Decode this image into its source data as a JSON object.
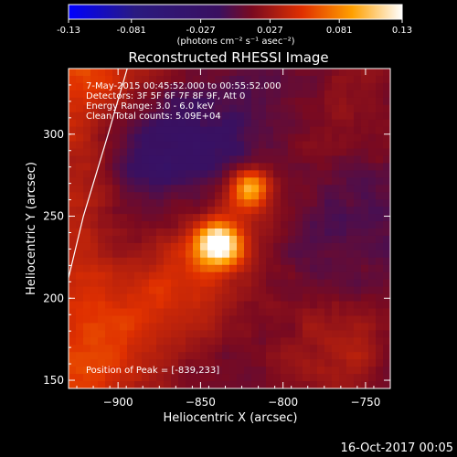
{
  "chart_data": {
    "type": "heatmap",
    "colorbar": {
      "min": -0.13,
      "max": 0.13,
      "ticks": [
        "-0.13",
        "-0.081",
        "-0.027",
        "0.027",
        "0.081",
        "0.13"
      ],
      "unit_label": "(photons cm⁻² s⁻¹ asec⁻²)"
    },
    "title": "Reconstructed RHESSI Image",
    "info_lines": [
      "7-May-2015 00:45:52.000 to 00:55:52.000",
      "Detectors: 3F 5F 6F 7F 8F 9F, Att 0",
      "Energy Range: 3.0 - 6.0 keV",
      "Clean    Total counts: 5.09E+04"
    ],
    "peak_text": "Position of Peak = [-839,233]",
    "xlabel": "Heliocentric X (arcsec)",
    "ylabel": "Heliocentric Y (arcsec)",
    "xlim": [
      -930,
      -735
    ],
    "ylim": [
      145,
      340
    ],
    "xticks": [
      -900,
      -850,
      -800,
      -750
    ],
    "yticks": [
      150,
      200,
      250,
      300
    ],
    "sources": [
      {
        "x": -839,
        "y": 233,
        "flux": 0.13
      },
      {
        "x": -820,
        "y": 267,
        "flux": 0.11
      }
    ],
    "footer_date": "16-Oct-2017 00:05"
  }
}
